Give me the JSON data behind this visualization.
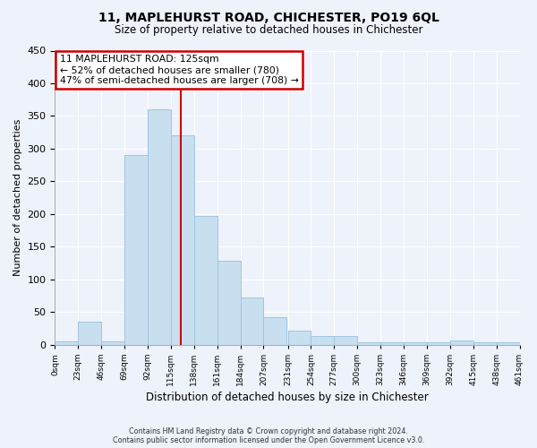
{
  "title": "11, MAPLEHURST ROAD, CHICHESTER, PO19 6QL",
  "subtitle": "Size of property relative to detached houses in Chichester",
  "xlabel": "Distribution of detached houses by size in Chichester",
  "ylabel": "Number of detached properties",
  "bar_color": "#c8dff0",
  "bar_edge_color": "#a0c4e0",
  "bin_edges": [
    0,
    23,
    46,
    69,
    92,
    115,
    138,
    161,
    184,
    207,
    231,
    254,
    277,
    300,
    323,
    346,
    369,
    392,
    415,
    438,
    461
  ],
  "bar_heights": [
    5,
    35,
    5,
    290,
    360,
    320,
    197,
    128,
    72,
    42,
    22,
    13,
    13,
    3,
    3,
    3,
    3,
    6,
    3,
    3
  ],
  "tick_labels": [
    "0sqm",
    "23sqm",
    "46sqm",
    "69sqm",
    "92sqm",
    "115sqm",
    "138sqm",
    "161sqm",
    "184sqm",
    "207sqm",
    "231sqm",
    "254sqm",
    "277sqm",
    "300sqm",
    "323sqm",
    "346sqm",
    "369sqm",
    "392sqm",
    "415sqm",
    "438sqm",
    "461sqm"
  ],
  "ylim": [
    0,
    450
  ],
  "yticks": [
    0,
    50,
    100,
    150,
    200,
    250,
    300,
    350,
    400,
    450
  ],
  "vline_x": 125,
  "annotation_title": "11 MAPLEHURST ROAD: 125sqm",
  "annotation_line1": "← 52% of detached houses are smaller (780)",
  "annotation_line2": "47% of semi-detached houses are larger (708) →",
  "annotation_box_facecolor": "#ffffff",
  "annotation_box_edgecolor": "#cc0000",
  "footer_line1": "Contains HM Land Registry data © Crown copyright and database right 2024.",
  "footer_line2": "Contains public sector information licensed under the Open Government Licence v3.0.",
  "background_color": "#eef2fb",
  "grid_color": "#ffffff",
  "vline_color": "#cc0000"
}
